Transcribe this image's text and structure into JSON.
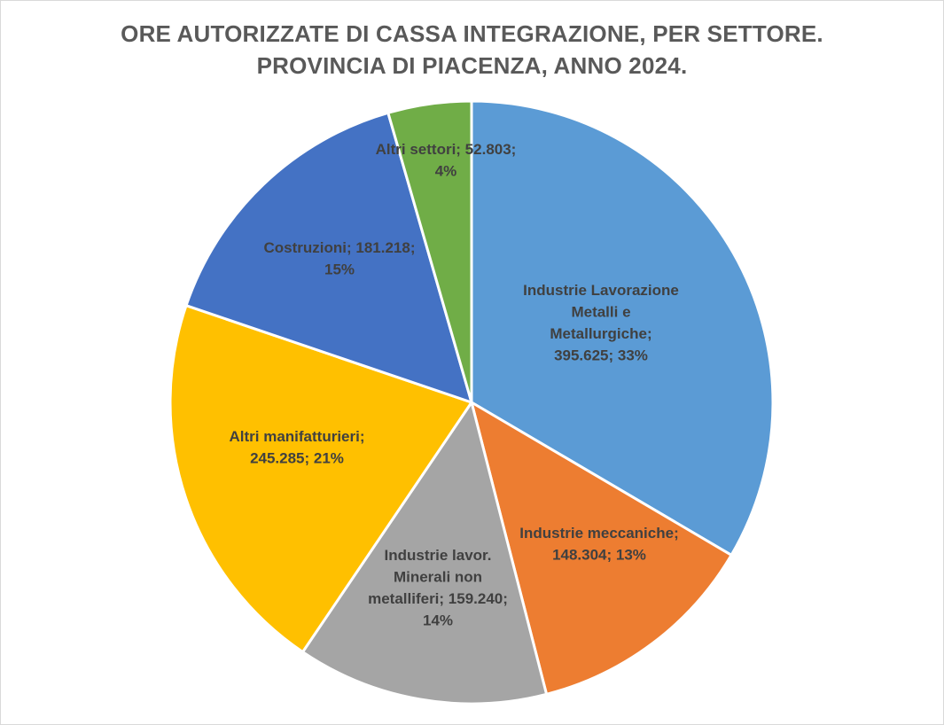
{
  "chart_data": {
    "type": "pie",
    "title_lines": [
      "ORE AUTORIZZATE DI CASSA INTEGRAZIONE, PER SETTORE.",
      "PROVINCIA DI PIACENZA, ANNO 2024."
    ],
    "slices": [
      {
        "name": "Industrie Lavorazione Metalli e Metallurgiche",
        "value": 395625,
        "percent": 33,
        "color": "#5b9bd5",
        "label_lines": [
          "Industrie Lavorazione",
          "Metalli e",
          "Metallurgiche;",
          "395.625; 33%"
        ]
      },
      {
        "name": "Industrie meccaniche",
        "value": 148304,
        "percent": 13,
        "color": "#ed7d31",
        "label_lines": [
          "Industrie meccaniche;",
          "148.304; 13%"
        ]
      },
      {
        "name": "Industrie lavor. Minerali non metalliferi",
        "value": 159240,
        "percent": 14,
        "color": "#a5a5a5",
        "label_lines": [
          "Industrie lavor.",
          "Minerali non",
          "metalliferi; 159.240;",
          "14%"
        ]
      },
      {
        "name": "Altri manifatturieri",
        "value": 245285,
        "percent": 21,
        "color": "#ffc000",
        "label_lines": [
          "Altri manifatturieri;",
          "245.285; 21%"
        ]
      },
      {
        "name": "Costruzioni",
        "value": 181218,
        "percent": 15,
        "color": "#4472c4",
        "label_lines": [
          "Costruzioni;  181.218;",
          "15%"
        ]
      },
      {
        "name": "Altri settori",
        "value": 52803,
        "percent": 4,
        "color": "#70ad47",
        "label_lines": [
          "Altri settori; 52.803;",
          "4%"
        ]
      }
    ],
    "start_angle": "top (12 o'clock)",
    "direction": "clockwise",
    "legend": "none",
    "data_labels": "category; value; percent"
  }
}
